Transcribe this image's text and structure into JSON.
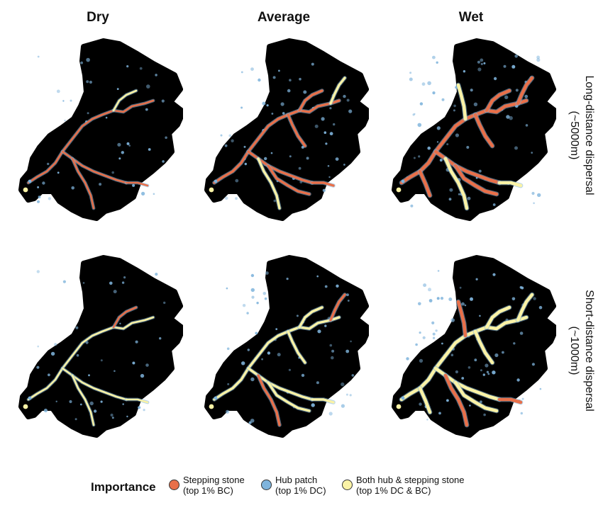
{
  "columns": [
    "Dry",
    "Average",
    "Wet"
  ],
  "rows": [
    {
      "line1": "Long-distance dispersal",
      "line2": "(~5000m)"
    },
    {
      "line1": "Short-distance dispersal",
      "line2": "(~1000m)"
    }
  ],
  "legend": {
    "title": "Importance",
    "items": [
      {
        "line1": "Stepping stone",
        "line2": "(top 1% BC)",
        "color": "#e8704a"
      },
      {
        "line1": "Hub patch",
        "line2": "(top 1% DC)",
        "color": "#7fb4dc"
      },
      {
        "line1": "Both hub & stepping stone",
        "line2": "(top 1% DC & BC)",
        "color": "#fbf3a6"
      }
    ]
  },
  "colors": {
    "catchment": "#000000",
    "stepping_stone": "#e8704a",
    "hub": "#7fb4dc",
    "both": "#fbf3a6"
  },
  "panels": [
    {
      "row": 0,
      "col": 0,
      "network": "sparse",
      "dominant": "stepping_stone"
    },
    {
      "row": 0,
      "col": 1,
      "network": "moderate",
      "dominant": "stepping_stone"
    },
    {
      "row": 0,
      "col": 2,
      "network": "dense",
      "dominant": "stepping_stone"
    },
    {
      "row": 1,
      "col": 0,
      "network": "sparse",
      "dominant": "both"
    },
    {
      "row": 1,
      "col": 1,
      "network": "moderate",
      "dominant": "both"
    },
    {
      "row": 1,
      "col": 2,
      "network": "dense",
      "dominant": "both"
    }
  ]
}
